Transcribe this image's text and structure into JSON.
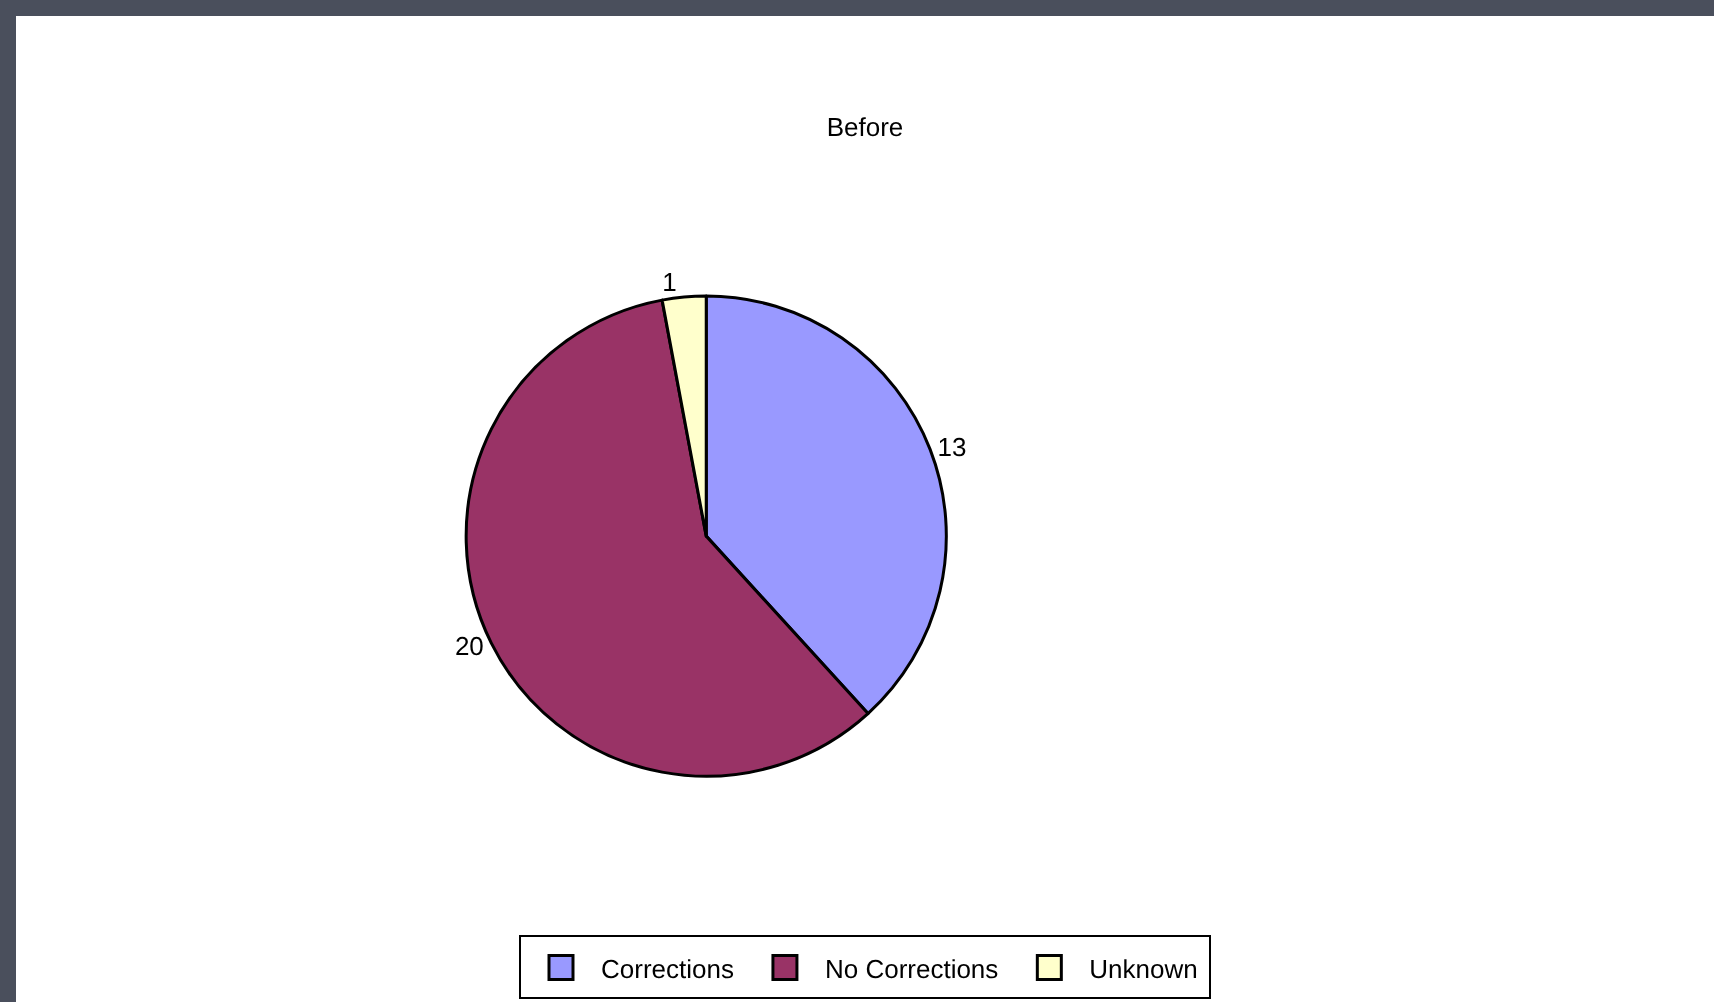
{
  "chart_data": {
    "type": "pie",
    "title": "Before",
    "categories": [
      "Corrections",
      "No Corrections",
      "Unknown"
    ],
    "values": [
      13,
      20,
      1
    ],
    "colors": [
      "#9999ff",
      "#993366",
      "#ffffcc"
    ],
    "data_labels": true,
    "legend": "bottom"
  }
}
